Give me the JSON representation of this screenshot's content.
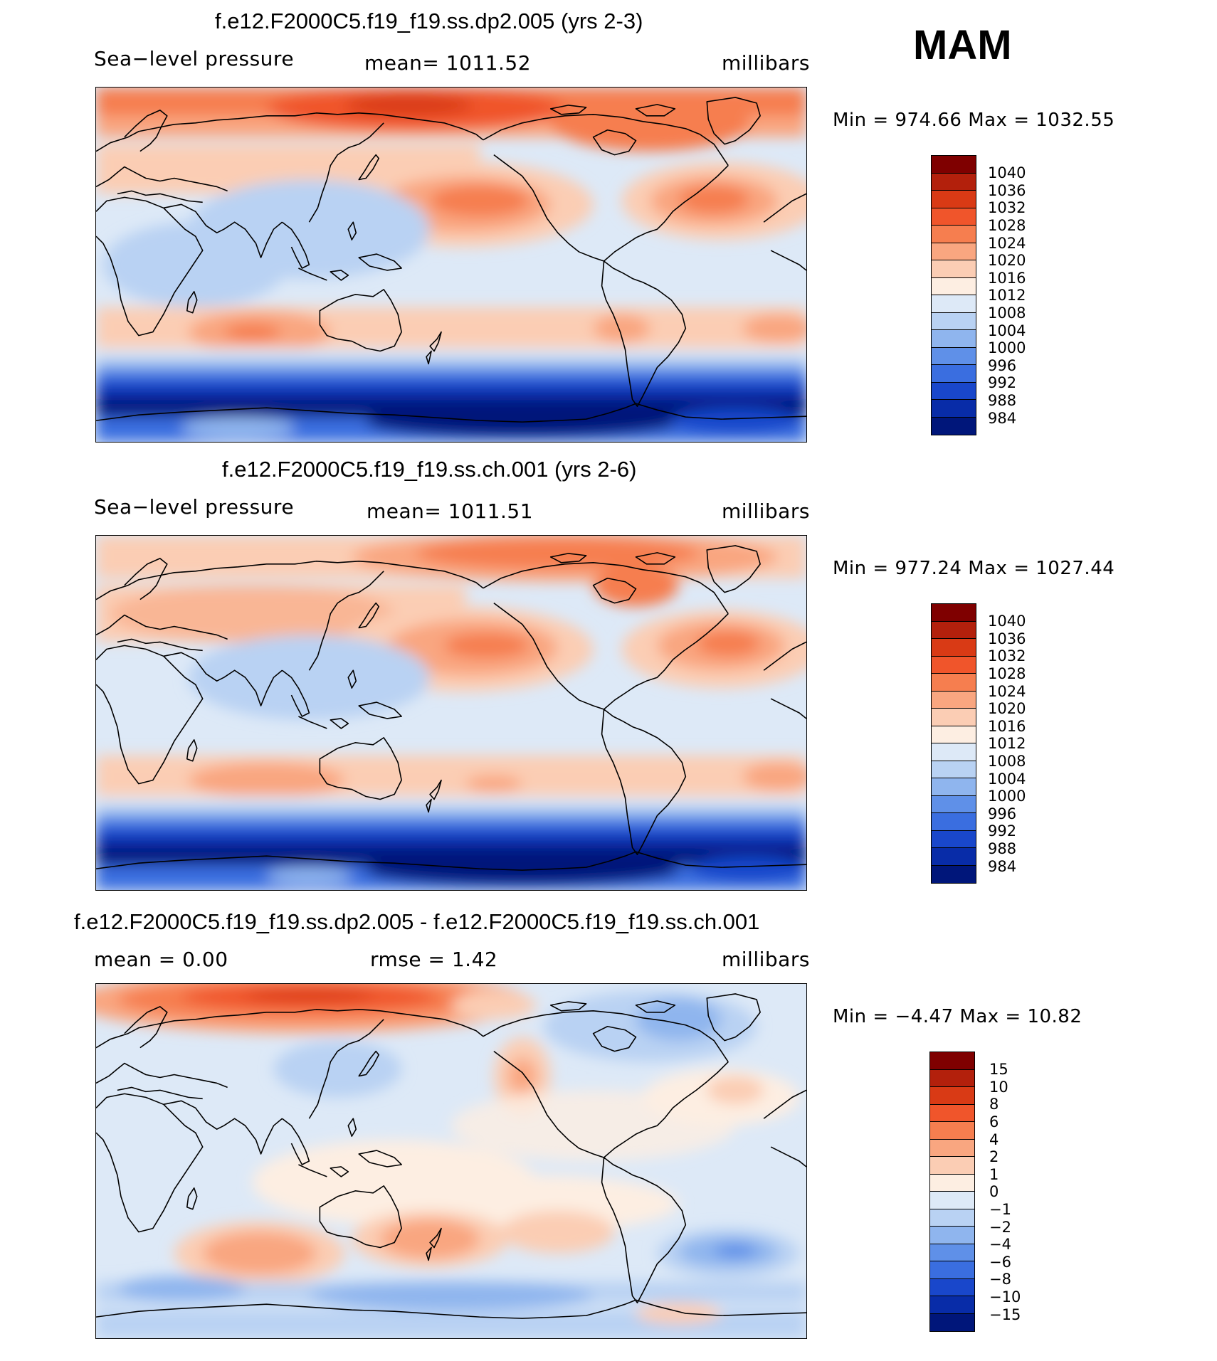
{
  "season": "MAM",
  "panels": [
    {
      "title": "f.e12.F2000C5.f19_f19.ss.dp2.005 (yrs 2-3)",
      "left_label": "Sea−level pressure",
      "center_label": "mean=  1011.52",
      "right_label": "millibars",
      "minmax": "Min  =  974.66  Max  =  1032.55",
      "colorbar_labels": [
        "1040",
        "1036",
        "1032",
        "1028",
        "1024",
        "1020",
        "1016",
        "1012",
        "1008",
        "1004",
        "1000",
        "996",
        "992",
        "988",
        "984"
      ],
      "colors": [
        "#7f0000",
        "#b3200c",
        "#d93a15",
        "#f0552b",
        "#f67e4f",
        "#f9a680",
        "#fbcdb4",
        "#fdeee2",
        "#dde9f7",
        "#b9d2f3",
        "#8fb5ee",
        "#5f90e8",
        "#3a6ee0",
        "#1947cb",
        "#082ca8",
        "#00167a"
      ]
    },
    {
      "title": "f.e12.F2000C5.f19_f19.ss.ch.001 (yrs 2-6)",
      "left_label": "Sea−level pressure",
      "center_label": "mean=  1011.51",
      "right_label": "millibars",
      "minmax": "Min  =  977.24  Max  =  1027.44",
      "colorbar_labels": [
        "1040",
        "1036",
        "1032",
        "1028",
        "1024",
        "1020",
        "1016",
        "1012",
        "1008",
        "1004",
        "1000",
        "996",
        "992",
        "988",
        "984"
      ],
      "colors": [
        "#7f0000",
        "#b3200c",
        "#d93a15",
        "#f0552b",
        "#f67e4f",
        "#f9a680",
        "#fbcdb4",
        "#fdeee2",
        "#dde9f7",
        "#b9d2f3",
        "#8fb5ee",
        "#5f90e8",
        "#3a6ee0",
        "#1947cb",
        "#082ca8",
        "#00167a"
      ]
    },
    {
      "title": "f.e12.F2000C5.f19_f19.ss.dp2.005 - f.e12.F2000C5.f19_f19.ss.ch.001",
      "left_label": "mean =      0.00",
      "center_label": "rmse =      1.42",
      "right_label": "millibars",
      "minmax": "Min  =     −4.47  Max  =     10.82",
      "colorbar_labels": [
        "15",
        "10",
        "8",
        "6",
        "4",
        "2",
        "1",
        "0",
        "−1",
        "−2",
        "−4",
        "−6",
        "−8",
        "−10",
        "−15"
      ],
      "colors": [
        "#7f0000",
        "#b3200c",
        "#d93a15",
        "#f0552b",
        "#f67e4f",
        "#f9a680",
        "#fbcdb4",
        "#fdeee2",
        "#dde9f7",
        "#b9d2f3",
        "#8fb5ee",
        "#5f90e8",
        "#3a6ee0",
        "#1947cb",
        "#082ca8",
        "#00167a"
      ]
    }
  ]
}
